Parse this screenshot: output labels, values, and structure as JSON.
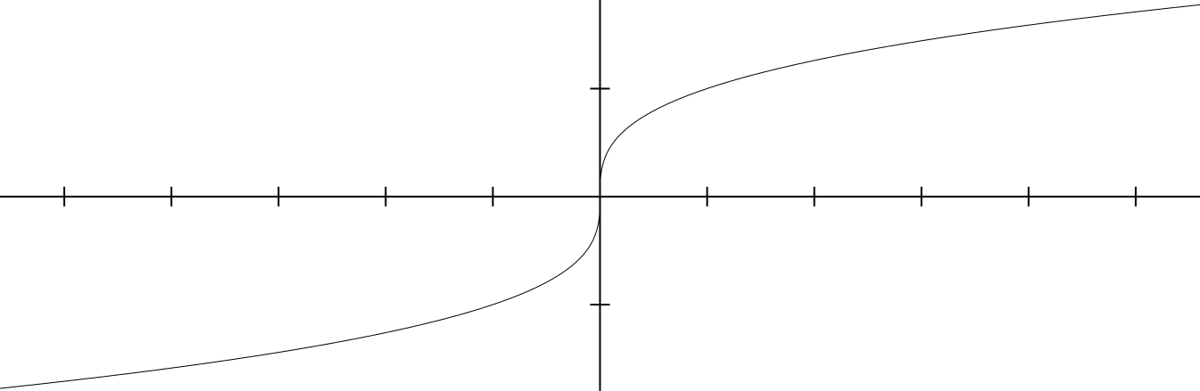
{
  "chart_data": {
    "type": "line",
    "function": "cube root",
    "xlim": [
      -5.6,
      5.6
    ],
    "ylim": [
      -1.8,
      1.82
    ],
    "x_ticks": [
      -5,
      -4,
      -3,
      -2,
      -1,
      1,
      2,
      3,
      4,
      5
    ],
    "y_ticks": [
      -1,
      1
    ],
    "tick_labels_shown": false,
    "grid": false,
    "legend": "none",
    "series": [
      {
        "color": "#000000",
        "x": [
          -5.6,
          -5,
          -4,
          -3,
          -2,
          -1,
          -0.5,
          -0.1,
          -0.01,
          0,
          0.01,
          0.1,
          0.5,
          1,
          2,
          3,
          4,
          5,
          5.6
        ],
        "y": [
          -1.776,
          -1.71,
          -1.587,
          -1.442,
          -1.26,
          -1,
          -0.794,
          -0.464,
          -0.215,
          0,
          0.215,
          0.464,
          0.794,
          1,
          1.26,
          1.442,
          1.587,
          1.71,
          1.776
        ]
      }
    ]
  }
}
